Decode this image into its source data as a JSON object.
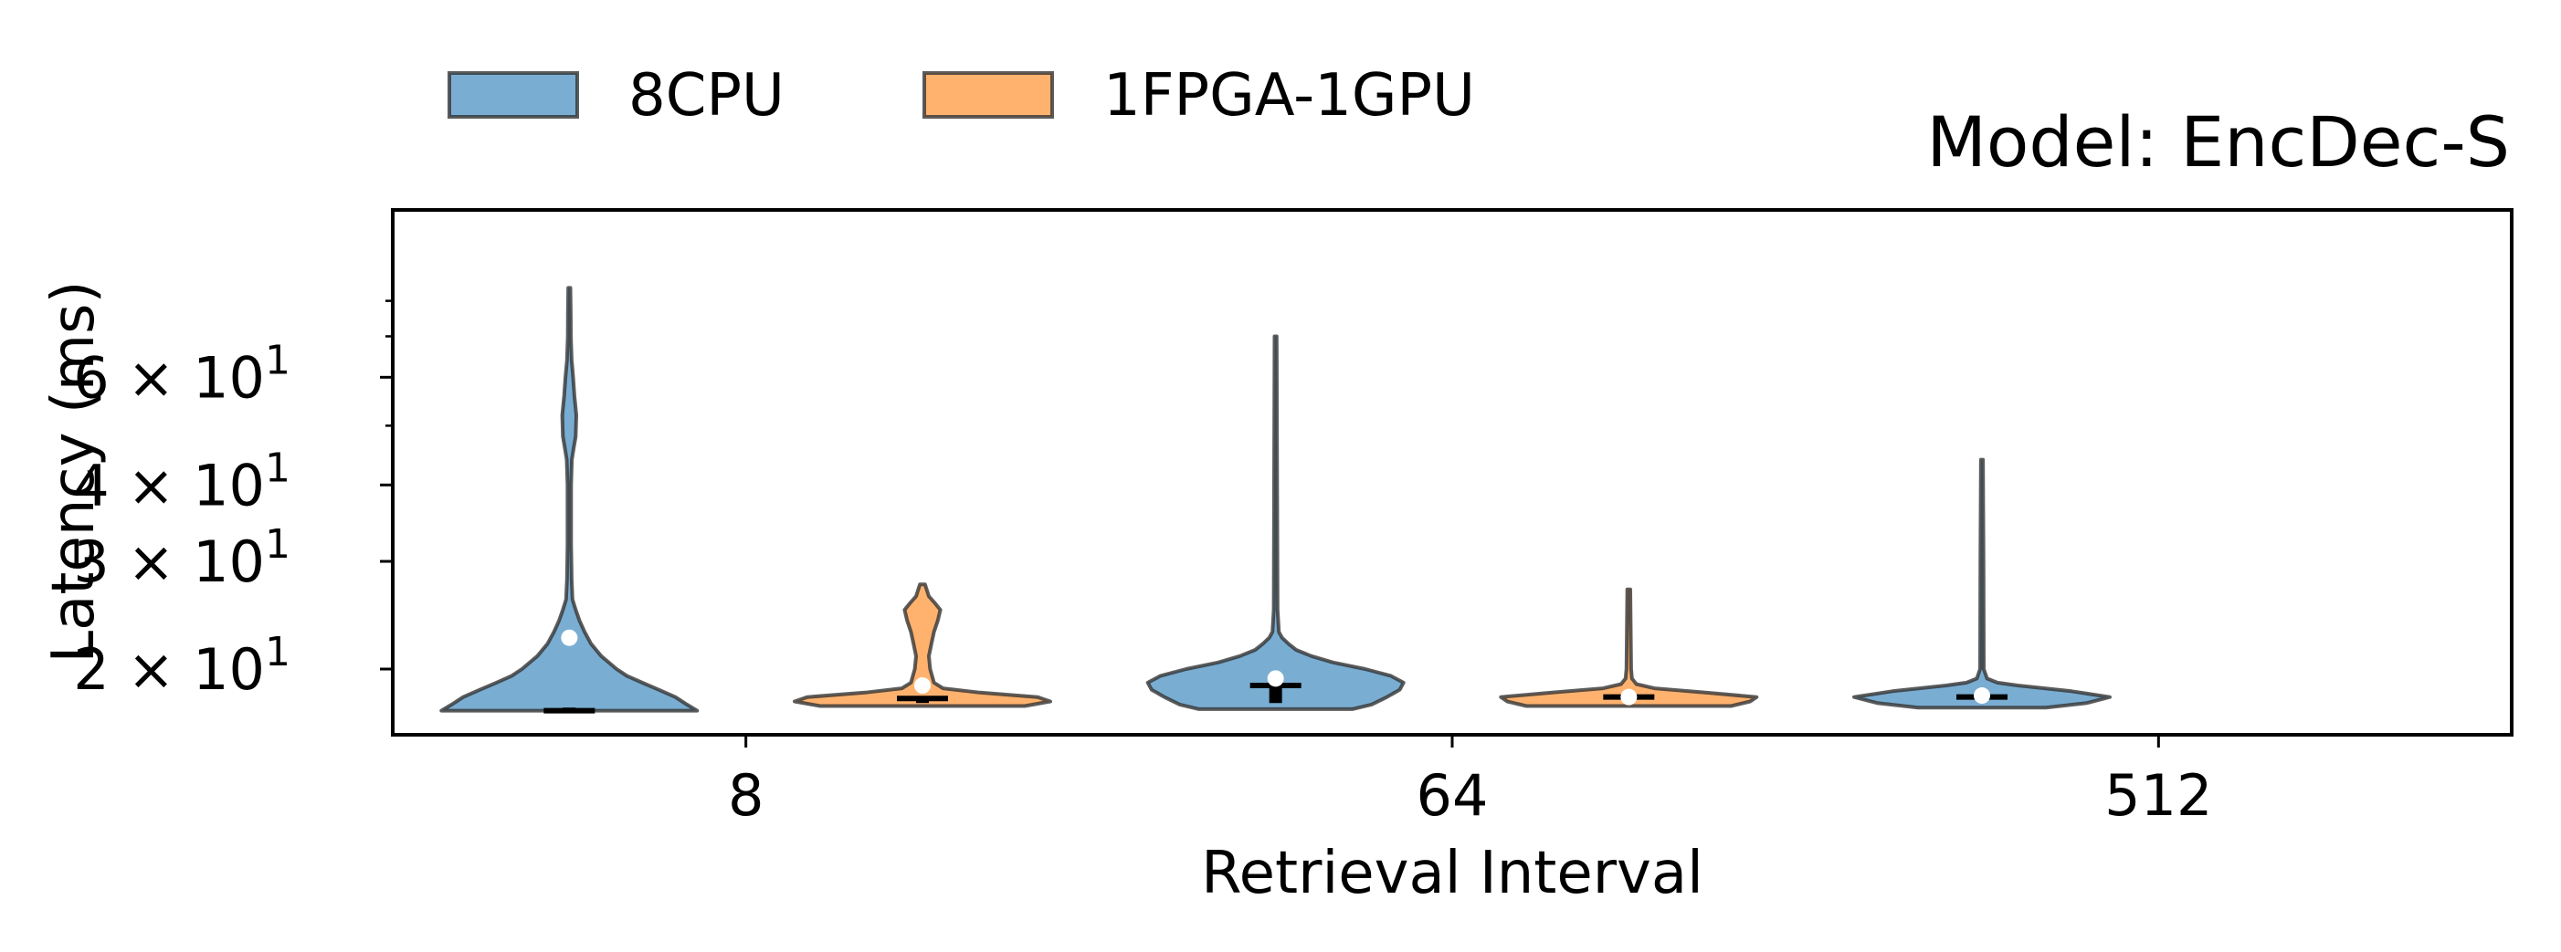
{
  "chart_data": {
    "type": "violin",
    "title": "Model: EncDec-S",
    "xlabel": "Retrieval Interval",
    "ylabel": "Latency (ms)",
    "yscale": "log",
    "ylim": [
      16.5,
      85
    ],
    "categories": [
      "8",
      "64",
      "512"
    ],
    "ytick_labels": [
      {
        "value": 20,
        "mantissa": "2",
        "exp": "1"
      },
      {
        "value": 30,
        "mantissa": "3",
        "exp": "1"
      },
      {
        "value": 40,
        "mantissa": "4",
        "exp": "1"
      },
      {
        "value": 60,
        "mantissa": "6",
        "exp": "1"
      }
    ],
    "minor_ticks": [
      50,
      70,
      80
    ],
    "legend_position": "top-left, above plot",
    "series": [
      {
        "name": "8CPU",
        "color": "#1f77b4",
        "violins": [
          {
            "min": 17.1,
            "max": 84,
            "q1": 17.1,
            "median": 17.1,
            "q3": 17.3,
            "mean": 22.5,
            "profile": [
              [
                17.1,
                1.0
              ],
              [
                17.5,
                0.92
              ],
              [
                18.0,
                0.83
              ],
              [
                18.5,
                0.7
              ],
              [
                19.0,
                0.57
              ],
              [
                19.5,
                0.45
              ],
              [
                20.0,
                0.37
              ],
              [
                21.0,
                0.25
              ],
              [
                22.0,
                0.17
              ],
              [
                23.0,
                0.12
              ],
              [
                24.0,
                0.08
              ],
              [
                25.0,
                0.05
              ],
              [
                26.0,
                0.025
              ],
              [
                28.0,
                0.018
              ],
              [
                32.0,
                0.014
              ],
              [
                40.0,
                0.014
              ],
              [
                44.0,
                0.02
              ],
              [
                46.0,
                0.035
              ],
              [
                48.0,
                0.05
              ],
              [
                52.0,
                0.055
              ],
              [
                56.0,
                0.04
              ],
              [
                60.0,
                0.03
              ],
              [
                64.0,
                0.018
              ],
              [
                70.0,
                0.012
              ],
              [
                76.0,
                0.011
              ],
              [
                84.0,
                0.008
              ]
            ]
          },
          {
            "min": 17.2,
            "max": 70,
            "q1": 17.6,
            "median": 18.8,
            "q3": 19.0,
            "mean": 19.3,
            "profile": [
              [
                17.2,
                0.6
              ],
              [
                17.5,
                0.75
              ],
              [
                18.0,
                0.87
              ],
              [
                18.5,
                0.97
              ],
              [
                19.0,
                1.0
              ],
              [
                19.5,
                0.9
              ],
              [
                20.0,
                0.7
              ],
              [
                20.5,
                0.45
              ],
              [
                21.0,
                0.28
              ],
              [
                21.5,
                0.16
              ],
              [
                22.0,
                0.1
              ],
              [
                22.5,
                0.05
              ],
              [
                23.0,
                0.025
              ],
              [
                25.0,
                0.015
              ],
              [
                40.0,
                0.012
              ],
              [
                70.0,
                0.008
              ]
            ]
          },
          {
            "min": 17.3,
            "max": 44,
            "q1": 17.8,
            "median": 18.0,
            "q3": 18.3,
            "mean": 18.1,
            "profile": [
              [
                17.3,
                0.5
              ],
              [
                17.6,
                0.82
              ],
              [
                18.0,
                1.0
              ],
              [
                18.4,
                0.7
              ],
              [
                18.8,
                0.28
              ],
              [
                19.0,
                0.12
              ],
              [
                19.3,
                0.04
              ],
              [
                20.0,
                0.014
              ],
              [
                30.0,
                0.012
              ],
              [
                44.0,
                0.008
              ]
            ]
          }
        ]
      },
      {
        "name": "1FPGA-1GPU",
        "color": "#ff7f0e",
        "violins": [
          {
            "min": 17.4,
            "max": 27.5,
            "q1": 17.6,
            "median": 17.9,
            "q3": 18.0,
            "mean": 18.8,
            "profile": [
              [
                17.4,
                0.8
              ],
              [
                17.7,
                1.0
              ],
              [
                18.0,
                0.9
              ],
              [
                18.3,
                0.45
              ],
              [
                18.6,
                0.16
              ],
              [
                19.0,
                0.09
              ],
              [
                20.0,
                0.06
              ],
              [
                21.0,
                0.05
              ],
              [
                22.0,
                0.07
              ],
              [
                23.0,
                0.09
              ],
              [
                24.0,
                0.12
              ],
              [
                25.0,
                0.14
              ],
              [
                25.6,
                0.1
              ],
              [
                26.3,
                0.05
              ],
              [
                27.5,
                0.02
              ]
            ]
          },
          {
            "min": 17.4,
            "max": 27,
            "q1": 17.8,
            "median": 18.0,
            "q3": 18.1,
            "mean": 18.0,
            "profile": [
              [
                17.4,
                0.8
              ],
              [
                17.7,
                0.95
              ],
              [
                18.0,
                1.0
              ],
              [
                18.3,
                0.6
              ],
              [
                18.6,
                0.2
              ],
              [
                18.9,
                0.06
              ],
              [
                19.3,
                0.025
              ],
              [
                20.0,
                0.018
              ],
              [
                27.0,
                0.012
              ]
            ]
          }
        ]
      }
    ]
  }
}
